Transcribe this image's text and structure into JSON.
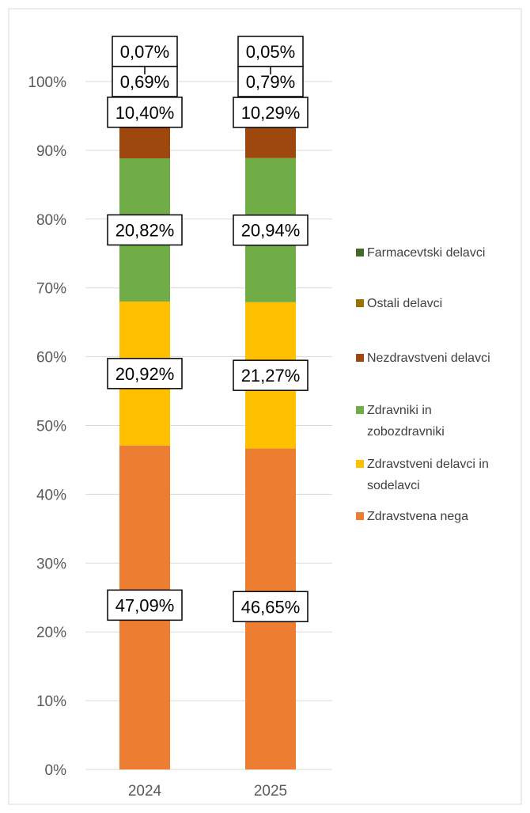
{
  "chart_data": {
    "type": "bar",
    "stacked": true,
    "percent_stacked": true,
    "categories": [
      "2024",
      "2025"
    ],
    "y_ticks": [
      "0%",
      "10%",
      "20%",
      "30%",
      "40%",
      "50%",
      "60%",
      "70%",
      "80%",
      "90%",
      "100%"
    ],
    "ylim": [
      0,
      100
    ],
    "grid": true,
    "legend_position": "right",
    "series": [
      {
        "name": "Zdravstvena nega",
        "color": "#ED7D31",
        "values": [
          47.09,
          46.65
        ],
        "labels": [
          "47,09%",
          "46,65%"
        ]
      },
      {
        "name": "Zdravstveni delavci in sodelavci",
        "color": "#FFC000",
        "values": [
          20.92,
          21.27
        ],
        "labels": [
          "20,92%",
          "21,27%"
        ]
      },
      {
        "name": "Zdravniki in zobozdravniki",
        "color": "#70AD47",
        "values": [
          20.82,
          20.94
        ],
        "labels": [
          "20,82%",
          "20,94%"
        ]
      },
      {
        "name": "Nezdravstveni delavci",
        "color": "#9E480E",
        "values": [
          10.4,
          10.29
        ],
        "labels": [
          "10,40%",
          "10,29%"
        ]
      },
      {
        "name": "Ostali delavci",
        "color": "#997300",
        "values": [
          0.69,
          0.79
        ],
        "labels": [
          "0,69%",
          "0,79%"
        ],
        "label_fill": "#4472C4"
      },
      {
        "name": "Farmacevtski delavci",
        "color": "#43682B",
        "values": [
          0.07,
          0.05
        ],
        "labels": [
          "0,07%",
          "0,05%"
        ],
        "label_fill": "#548235"
      }
    ],
    "legend": [
      {
        "name": "Farmacevtski delavci",
        "lines": [
          "Farmacevtski delavci"
        ],
        "color": "#43682B"
      },
      {
        "name": "Ostali delavci",
        "lines": [
          "Ostali delavci"
        ],
        "color": "#997300"
      },
      {
        "name": "Nezdravstveni delavci",
        "lines": [
          "Nezdravstveni delavci"
        ],
        "color": "#9E480E"
      },
      {
        "name": "Zdravniki in zobozdravniki",
        "lines": [
          "Zdravniki in",
          "zobozdravniki"
        ],
        "color": "#70AD47"
      },
      {
        "name": "Zdravstveni delavci in sodelavci",
        "lines": [
          "Zdravstveni delavci in",
          "sodelavci"
        ],
        "color": "#FFC000"
      },
      {
        "name": "Zdravstvena nega",
        "lines": [
          "Zdravstvena nega"
        ],
        "color": "#ED7D31"
      }
    ]
  }
}
